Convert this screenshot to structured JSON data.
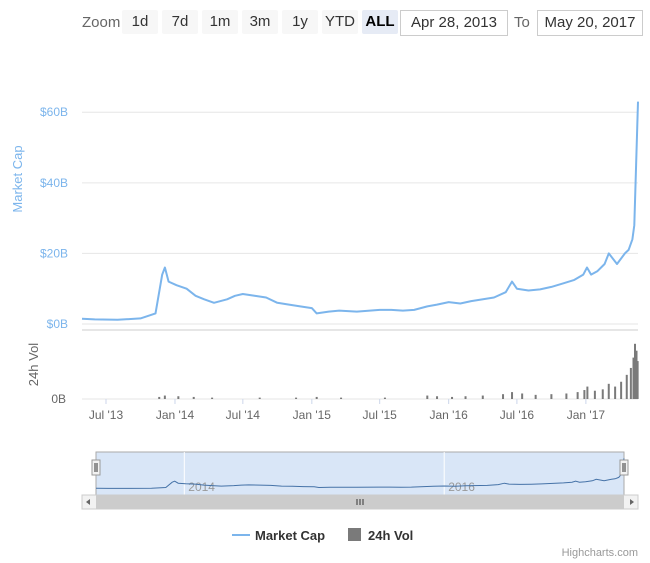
{
  "toolbar": {
    "zoom_label": "Zoom",
    "buttons": [
      "1d",
      "7d",
      "1m",
      "3m",
      "1y",
      "YTD",
      "ALL"
    ],
    "active": "ALL",
    "from_date": "Apr 28, 2013",
    "to_label": "To",
    "to_date": "May 20, 2017"
  },
  "credit": "Highcharts.com",
  "colors": {
    "market_cap": "#7cb5ec",
    "volume": "#434348",
    "navigator_fill": "#d9e6f7",
    "grid": "#e6e6e6"
  },
  "chart_data": {
    "type": "line",
    "x_ticks": [
      "Jul '13",
      "Jan '14",
      "Jul '14",
      "Jan '15",
      "Jul '15",
      "Jan '16",
      "Jul '16",
      "Jan '17"
    ],
    "x_tick_dates": [
      "2013-07-01",
      "2014-01-01",
      "2014-07-01",
      "2015-01-01",
      "2015-07-01",
      "2016-01-01",
      "2016-07-01",
      "2017-01-01"
    ],
    "x_range": [
      "2013-04-28",
      "2017-05-20"
    ],
    "market_cap": {
      "ylabel": "Market Cap",
      "y_ticks": [
        "$0B",
        "$20B",
        "$40B",
        "$60B"
      ],
      "y_tick_values": [
        0,
        20,
        40,
        60
      ],
      "ylim": [
        0,
        68
      ],
      "dates": [
        "2013-04-28",
        "2013-06-01",
        "2013-08-01",
        "2013-10-01",
        "2013-11-10",
        "2013-11-28",
        "2013-12-05",
        "2013-12-15",
        "2014-01-05",
        "2014-02-01",
        "2014-02-25",
        "2014-03-20",
        "2014-04-15",
        "2014-05-20",
        "2014-06-10",
        "2014-07-01",
        "2014-08-01",
        "2014-09-01",
        "2014-10-01",
        "2014-11-01",
        "2014-12-01",
        "2015-01-01",
        "2015-01-14",
        "2015-02-15",
        "2015-03-15",
        "2015-05-01",
        "2015-07-01",
        "2015-08-01",
        "2015-09-01",
        "2015-10-01",
        "2015-11-05",
        "2015-12-01",
        "2016-01-01",
        "2016-02-01",
        "2016-03-01",
        "2016-05-01",
        "2016-06-01",
        "2016-06-18",
        "2016-07-01",
        "2016-08-01",
        "2016-09-01",
        "2016-10-01",
        "2016-11-01",
        "2016-12-01",
        "2016-12-25",
        "2017-01-04",
        "2017-01-15",
        "2017-02-01",
        "2017-02-20",
        "2017-03-03",
        "2017-03-25",
        "2017-04-15",
        "2017-04-25",
        "2017-05-05",
        "2017-05-10",
        "2017-05-15",
        "2017-05-20"
      ],
      "values": [
        1.5,
        1.3,
        1.2,
        1.6,
        3,
        14,
        16,
        12,
        11,
        10,
        8,
        7,
        6,
        7,
        8,
        8.5,
        8,
        7.5,
        6,
        5.5,
        5,
        4.5,
        3,
        3.5,
        3.8,
        3.5,
        4,
        4,
        3.8,
        4,
        5,
        5.5,
        6.2,
        5.8,
        6.5,
        7.5,
        9,
        12,
        10,
        9.5,
        9.8,
        10.5,
        11.5,
        12.5,
        14,
        16,
        14,
        15,
        17,
        20,
        17,
        20,
        21,
        24,
        28,
        45,
        63
      ]
    },
    "volume": {
      "ylabel": "24h Vol",
      "y_ticks": [
        "0B"
      ],
      "note_max_bar": "about one third of panel near May 2017",
      "dates": [
        "2013-11-20",
        "2013-12-05",
        "2014-01-10",
        "2014-02-20",
        "2014-04-10",
        "2014-08-15",
        "2014-11-20",
        "2015-01-14",
        "2015-03-20",
        "2015-07-15",
        "2015-11-05",
        "2015-12-01",
        "2016-01-10",
        "2016-02-15",
        "2016-04-01",
        "2016-05-25",
        "2016-06-18",
        "2016-07-15",
        "2016-08-20",
        "2016-10-01",
        "2016-11-10",
        "2016-12-10",
        "2016-12-28",
        "2017-01-05",
        "2017-01-25",
        "2017-02-15",
        "2017-03-03",
        "2017-03-20",
        "2017-04-05",
        "2017-04-20",
        "2017-05-01",
        "2017-05-08",
        "2017-05-12",
        "2017-05-16",
        "2017-05-19"
      ],
      "values": [
        0.03,
        0.05,
        0.04,
        0.03,
        0.02,
        0.02,
        0.02,
        0.03,
        0.02,
        0.02,
        0.05,
        0.04,
        0.03,
        0.04,
        0.05,
        0.07,
        0.1,
        0.08,
        0.06,
        0.07,
        0.08,
        0.1,
        0.13,
        0.18,
        0.12,
        0.14,
        0.22,
        0.18,
        0.25,
        0.35,
        0.45,
        0.6,
        0.8,
        0.7,
        0.55
      ]
    },
    "navigator_labels": [
      "2014",
      "2016"
    ],
    "legend": [
      "Market Cap",
      "24h Vol"
    ],
    "legend_position": "bottom-center",
    "grid": true
  }
}
